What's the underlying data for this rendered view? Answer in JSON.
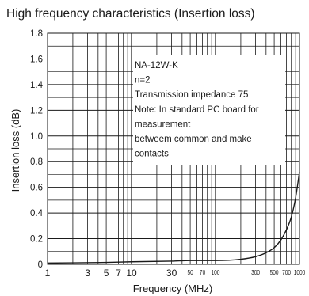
{
  "chart_data": {
    "type": "line",
    "title": "High frequency characteristics (Insertion loss)",
    "xlabel": "Frequency (MHz)",
    "ylabel": "Insertion loss (dB)",
    "x_scale": "log",
    "xlim": [
      1,
      1000
    ],
    "ylim": [
      0,
      1.8
    ],
    "grid": true,
    "x_ticks": [
      {
        "value": 1,
        "label": "1",
        "size": "large"
      },
      {
        "value": 3,
        "label": "3",
        "size": "large"
      },
      {
        "value": 5,
        "label": "5",
        "size": "large"
      },
      {
        "value": 7,
        "label": "7",
        "size": "large"
      },
      {
        "value": 10,
        "label": "10",
        "size": "large"
      },
      {
        "value": 30,
        "label": "30",
        "size": "large"
      },
      {
        "value": 50,
        "label": "50",
        "size": "small"
      },
      {
        "value": 70,
        "label": "70",
        "size": "small"
      },
      {
        "value": 100,
        "label": "100",
        "size": "small"
      },
      {
        "value": 300,
        "label": "300",
        "size": "small"
      },
      {
        "value": 500,
        "label": "500",
        "size": "small"
      },
      {
        "value": 700,
        "label": "700",
        "size": "small"
      },
      {
        "value": 1000,
        "label": "1000",
        "size": "small"
      }
    ],
    "y_ticks": [
      {
        "value": 0,
        "label": "0"
      },
      {
        "value": 0.2,
        "label": "0.2"
      },
      {
        "value": 0.4,
        "label": "0.4"
      },
      {
        "value": 0.6,
        "label": "0.6"
      },
      {
        "value": 0.8,
        "label": "0.8"
      },
      {
        "value": 1.0,
        "label": "1.0"
      },
      {
        "value": 1.2,
        "label": "1.2"
      },
      {
        "value": 1.4,
        "label": "1.4"
      },
      {
        "value": 1.6,
        "label": "1.6"
      },
      {
        "value": 1.8,
        "label": "1.8"
      }
    ],
    "series": [
      {
        "x": [
          1,
          5,
          10,
          30,
          50,
          100,
          200,
          300,
          400,
          500,
          600,
          700,
          800,
          900,
          1000
        ],
        "y": [
          0.01,
          0.015,
          0.02,
          0.025,
          0.03,
          0.03,
          0.04,
          0.06,
          0.09,
          0.13,
          0.19,
          0.27,
          0.37,
          0.52,
          0.72
        ]
      }
    ],
    "annotation": {
      "lines": [
        "NA-12W-K",
        "n=2",
        "Transmission impedance 75",
        "Note: In standard PC board for",
        "measurement",
        "betweem common and make",
        "contacts"
      ]
    }
  }
}
